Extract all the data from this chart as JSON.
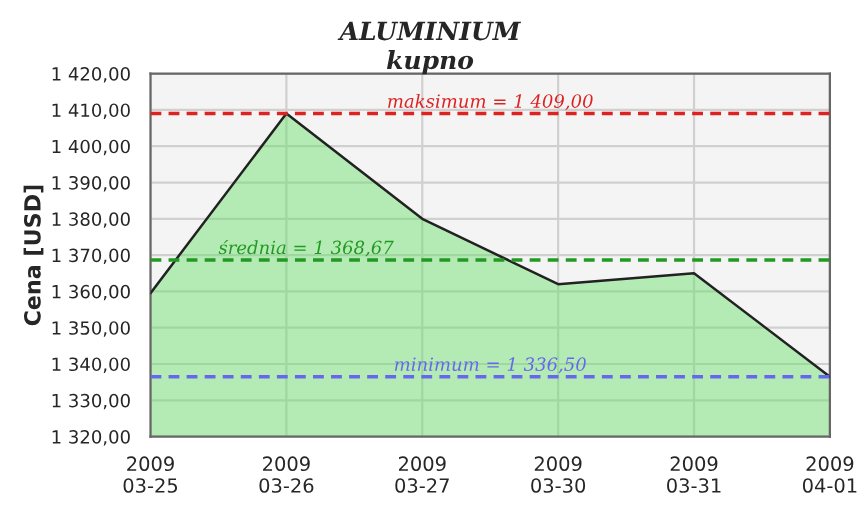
{
  "chart_data": {
    "type": "area",
    "title": "ALUMINIUM",
    "subtitle": "kupno",
    "ylabel": "Cena [USD]",
    "categories": [
      "2009\n03-25",
      "2009\n03-26",
      "2009\n03-27",
      "2009\n03-30",
      "2009\n03-31",
      "2009\n04-01"
    ],
    "series": [
      {
        "color": "#66e066",
        "values": [
          1359.5,
          1409,
          1380,
          1362,
          1365,
          1336.5
        ]
      }
    ],
    "ylim": [
      1320,
      1420
    ],
    "yticks": [
      {
        "value": 1320,
        "label": "1 320,00"
      },
      {
        "value": 1330,
        "label": "1 330,00"
      },
      {
        "value": 1340,
        "label": "1 340,00"
      },
      {
        "value": 1350,
        "label": "1 350,00"
      },
      {
        "value": 1360,
        "label": "1 360,00"
      },
      {
        "value": 1370,
        "label": "1 370,00"
      },
      {
        "value": 1380,
        "label": "1 380,00"
      },
      {
        "value": 1390,
        "label": "1 390,00"
      },
      {
        "value": 1400,
        "label": "1 400,00"
      },
      {
        "value": 1410,
        "label": "1 410,00"
      },
      {
        "value": 1420,
        "label": "1 420,00"
      }
    ],
    "ref_lines": [
      {
        "axis": "y",
        "value": 1409,
        "label": "maksimum = 1 409,00",
        "color": "#dd2222",
        "line_style": "dashed"
      },
      {
        "axis": "y",
        "value": 1368.67,
        "label": "średnia = 1 368,67",
        "color": "#229922",
        "line_style": "dashed"
      },
      {
        "axis": "y",
        "value": 1336.5,
        "label": "minimum = 1 336,50",
        "color": "#6666ee",
        "line_style": "dashed"
      }
    ],
    "grid": true,
    "legend": false
  }
}
